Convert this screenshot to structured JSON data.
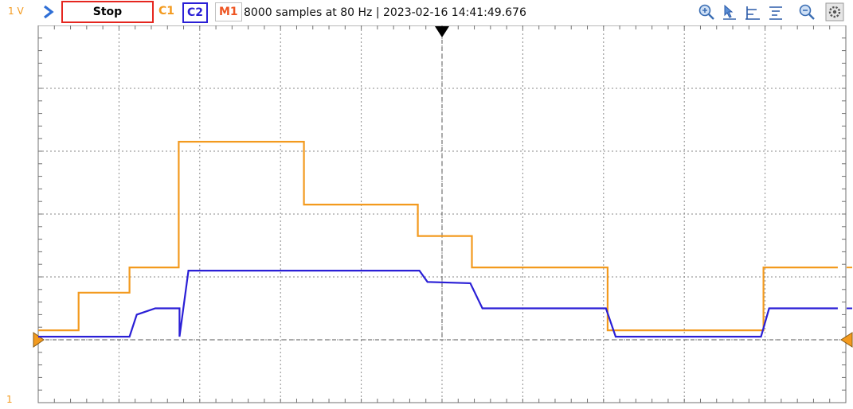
{
  "toolbar": {
    "channel_scale_label": "1 V",
    "stop_label": "Stop",
    "channels": [
      "C1",
      "C2",
      "M1"
    ],
    "status_text": "8000 samples at 80 Hz | 2023-02-16 14:41:49.676",
    "icons": [
      "run-chevron-icon",
      "zoom-in-icon",
      "cursor-pointer-icon",
      "horizontal-cursors-icon",
      "vertical-cursors-icon",
      "zoom-fit-icon",
      "settings-icon"
    ]
  },
  "bottom_label": "1",
  "colors": {
    "c1": "#f39a1e",
    "c2": "#2a1fd6",
    "m1": "#ee5522",
    "stop_border": "#e5261f",
    "grid": "#8a8a8a"
  },
  "chart_data": {
    "type": "line",
    "title": "",
    "xlabel": "",
    "ylabel": "",
    "grid": true,
    "x_divisions": 10,
    "y_divisions": 6,
    "xlim": [
      0,
      10
    ],
    "ylim": [
      -1,
      5
    ],
    "series": [
      {
        "name": "C1",
        "color": "#f39a1e",
        "x": [
          0,
          0.5,
          0.5,
          1.13,
          1.13,
          1.74,
          1.74,
          3.29,
          3.29,
          4.7,
          4.7,
          5.37,
          5.37,
          7.05,
          7.05,
          8.98,
          8.98,
          9.9
        ],
        "y": [
          0.15,
          0.15,
          0.75,
          0.75,
          1.15,
          1.15,
          3.15,
          3.15,
          2.15,
          2.15,
          1.65,
          1.65,
          1.15,
          1.15,
          0.15,
          0.15,
          1.15,
          1.15
        ]
      },
      {
        "name": "C2",
        "color": "#2a1fd6",
        "x": [
          0,
          1.13,
          1.22,
          1.45,
          1.75,
          1.75,
          1.86,
          4.72,
          4.82,
          5.35,
          5.5,
          7.03,
          7.15,
          7.45,
          8.95,
          9.05,
          9.9
        ],
        "y": [
          0.05,
          0.05,
          0.4,
          0.5,
          0.5,
          0.05,
          1.1,
          1.1,
          0.92,
          0.9,
          0.5,
          0.5,
          0.05,
          0.05,
          0.05,
          0.5,
          0.5
        ]
      }
    ]
  }
}
